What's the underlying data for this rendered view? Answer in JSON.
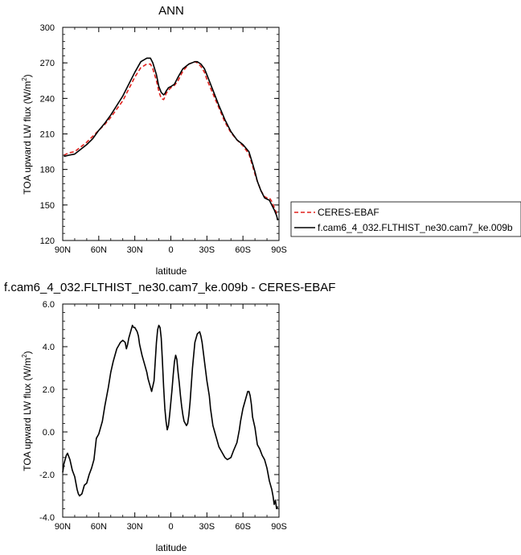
{
  "chart_data": [
    {
      "type": "line",
      "title": "ANN",
      "xlabel": "latitude",
      "ylabel": "TOA upward LW flux (W/m",
      "ylabel_superscript": "2",
      "ylabel_suffix": ")",
      "xlim": [
        90,
        -90
      ],
      "ylim": [
        120,
        300
      ],
      "x_ticks": [
        90,
        60,
        30,
        0,
        -30,
        -60,
        -90
      ],
      "x_tick_labels": [
        "90N",
        "60N",
        "30N",
        "0",
        "30S",
        "60S",
        "90S"
      ],
      "y_ticks": [
        120,
        150,
        180,
        210,
        240,
        270,
        300
      ],
      "y_tick_labels": [
        "120",
        "150",
        "180",
        "210",
        "240",
        "270",
        "300"
      ],
      "grid": false,
      "legend_position": "right",
      "series": [
        {
          "name": "CERES-EBAF",
          "color": "#e0201c",
          "dash": "dashed",
          "x": [
            89,
            85,
            80,
            75,
            70,
            65,
            60,
            55,
            50,
            45,
            40,
            35,
            30,
            25,
            20,
            17,
            15,
            12,
            10,
            8,
            6,
            5,
            4,
            2,
            0,
            -3,
            -6,
            -10,
            -15,
            -20,
            -22,
            -25,
            -28,
            -30,
            -35,
            -40,
            -45,
            -50,
            -55,
            -60,
            -65,
            -68,
            -70,
            -72,
            -75,
            -78,
            -80,
            -82,
            -84,
            -86,
            -88,
            -89
          ],
          "values": [
            192,
            194,
            195,
            199,
            203,
            208,
            213,
            218,
            224,
            231,
            238,
            248,
            258,
            266,
            269,
            269,
            265,
            255,
            246,
            240,
            239,
            241,
            244,
            247,
            249,
            251,
            255,
            263,
            269,
            271,
            270,
            267,
            262,
            256,
            244,
            232,
            220,
            211,
            205,
            200,
            193,
            183,
            176,
            170,
            162,
            157,
            156,
            156,
            153,
            148,
            143,
            141
          ]
        },
        {
          "name": "f.cam6_4_032.FLTHIST_ne30.cam7_ke.009b",
          "color": "#000000",
          "dash": "solid",
          "x": [
            89,
            85,
            80,
            75,
            70,
            65,
            60,
            55,
            50,
            45,
            40,
            35,
            30,
            25,
            20,
            17,
            15,
            12,
            10,
            8,
            6,
            5,
            4,
            2,
            0,
            -3,
            -6,
            -10,
            -15,
            -20,
            -22,
            -25,
            -28,
            -30,
            -35,
            -40,
            -45,
            -50,
            -55,
            -60,
            -65,
            -68,
            -70,
            -72,
            -75,
            -78,
            -80,
            -82,
            -84,
            -86,
            -88,
            -89
          ],
          "values": [
            191,
            192,
            193,
            197,
            201,
            206,
            213,
            219,
            226,
            234,
            242,
            252,
            262,
            271,
            274,
            274,
            270,
            260,
            250,
            245,
            243,
            244,
            246,
            249,
            250,
            252,
            258,
            265,
            269,
            271,
            271,
            269,
            265,
            260,
            247,
            234,
            222,
            212,
            205,
            201,
            195,
            185,
            178,
            170,
            162,
            156,
            155,
            154,
            150,
            146,
            141,
            137
          ]
        }
      ]
    },
    {
      "type": "line",
      "title": "f.cam6_4_032.FLTHIST_ne30.cam7_ke.009b - CERES-EBAF",
      "xlabel": "latitude",
      "ylabel": "TOA upward LW flux (W/m",
      "ylabel_superscript": "2",
      "ylabel_suffix": ")",
      "xlim": [
        90,
        -90
      ],
      "ylim": [
        -4.0,
        6.0
      ],
      "x_ticks": [
        90,
        60,
        30,
        0,
        -30,
        -60,
        -90
      ],
      "x_tick_labels": [
        "90N",
        "60N",
        "30N",
        "0",
        "30S",
        "60S",
        "90S"
      ],
      "y_ticks": [
        -4,
        -2,
        0,
        2,
        4,
        6
      ],
      "y_tick_labels": [
        "-4.0",
        "-2.0",
        "0.0",
        "2.0",
        "4.0",
        "6.0"
      ],
      "grid": false,
      "series": [
        {
          "color": "#000000",
          "dash": "solid",
          "x": [
            90,
            89,
            87,
            86,
            84,
            82,
            80,
            78,
            77,
            76,
            74,
            72,
            70,
            68,
            66,
            64,
            63,
            62,
            60,
            57,
            55,
            52,
            50,
            48,
            47,
            45,
            43,
            42,
            40,
            38,
            37,
            36,
            35,
            33,
            32,
            31,
            30,
            29,
            28,
            27,
            26,
            24,
            22,
            20,
            19,
            18,
            16,
            14,
            13,
            12,
            11,
            10,
            9,
            8,
            7,
            6,
            5,
            4,
            3,
            2,
            1,
            0,
            -1,
            -2,
            -3,
            -4,
            -5,
            -6,
            -7,
            -8,
            -9,
            -10,
            -11,
            -12,
            -13,
            -14,
            -15,
            -16,
            -17,
            -18,
            -19,
            -20,
            -22,
            -24,
            -25,
            -26,
            -28,
            -30,
            -32,
            -33,
            -34,
            -35,
            -37,
            -40,
            -42,
            -45,
            -47,
            -50,
            -52,
            -55,
            -57,
            -58,
            -60,
            -62,
            -63,
            -64,
            -65,
            -66,
            -67,
            -68,
            -70,
            -72,
            -74,
            -76,
            -78,
            -80,
            -82,
            -84,
            -85,
            -86,
            -87,
            -88,
            -89
          ],
          "values": [
            -1.9,
            -1.5,
            -1.1,
            -1.0,
            -1.3,
            -1.8,
            -2.1,
            -2.7,
            -2.9,
            -3.0,
            -2.9,
            -2.5,
            -2.4,
            -2.0,
            -1.7,
            -1.3,
            -0.8,
            -0.3,
            -0.1,
            0.5,
            1.2,
            2.1,
            2.8,
            3.3,
            3.5,
            3.9,
            4.1,
            4.2,
            4.3,
            4.2,
            3.9,
            4.1,
            4.4,
            4.8,
            5.0,
            4.9,
            4.9,
            4.8,
            4.7,
            4.5,
            4.1,
            3.6,
            3.2,
            2.8,
            2.5,
            2.3,
            1.9,
            2.4,
            3.3,
            4.2,
            4.8,
            5.0,
            4.9,
            4.4,
            3.3,
            2.1,
            1.1,
            0.5,
            0.1,
            0.3,
            0.8,
            1.4,
            2.0,
            2.7,
            3.3,
            3.6,
            3.4,
            2.8,
            2.3,
            1.7,
            1.2,
            0.8,
            0.5,
            0.4,
            0.3,
            0.4,
            0.8,
            1.4,
            2.2,
            3.0,
            3.6,
            4.2,
            4.6,
            4.7,
            4.5,
            4.2,
            3.3,
            2.4,
            1.7,
            1.1,
            0.7,
            0.3,
            -0.1,
            -0.7,
            -0.9,
            -1.2,
            -1.3,
            -1.2,
            -0.9,
            -0.5,
            0.1,
            0.5,
            1.1,
            1.5,
            1.7,
            1.9,
            1.9,
            1.7,
            1.3,
            0.7,
            0.2,
            -0.6,
            -0.8,
            -1.1,
            -1.3,
            -1.7,
            -2.3,
            -2.7,
            -3.0,
            -3.4,
            -3.2,
            -3.6,
            -3.5
          ]
        }
      ]
    }
  ]
}
